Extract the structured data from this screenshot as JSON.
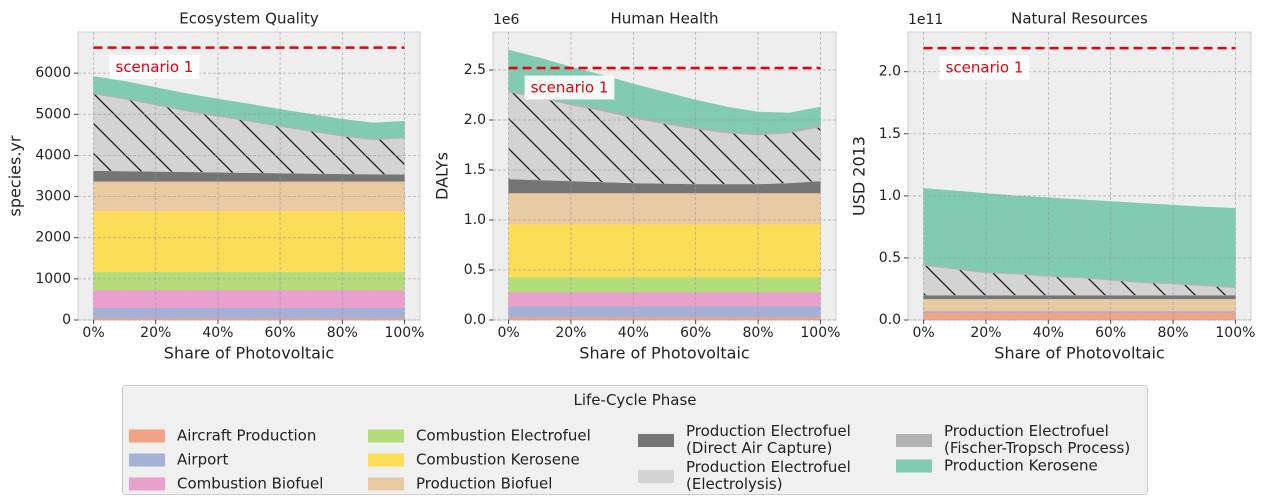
{
  "chart_data": [
    {
      "type": "stacked_area",
      "title": "Ecosystem Quality",
      "xlabel": "Share of Photovoltaic",
      "ylabel": "species.yr",
      "x": [
        0,
        10,
        20,
        30,
        40,
        50,
        60,
        70,
        80,
        90,
        100
      ],
      "xlim": [
        -5,
        105
      ],
      "xticks": [
        {
          "value": 0,
          "label": "0%"
        },
        {
          "value": 20,
          "label": "20%"
        },
        {
          "value": 40,
          "label": "40%"
        },
        {
          "value": 60,
          "label": "60%"
        },
        {
          "value": 80,
          "label": "80%"
        },
        {
          "value": 100,
          "label": "100%"
        }
      ],
      "ylim": [
        0,
        7000
      ],
      "yticks": [
        0,
        1000,
        2000,
        3000,
        4000,
        5000,
        6000
      ],
      "grid": true,
      "reference_line": {
        "value": 6620,
        "label": "scenario 1",
        "color": "#e8000b",
        "xmin": 0,
        "xmax": 100
      },
      "series": [
        {
          "name": "Aircraft Production",
          "color": "#f3a385",
          "values": [
            50,
            50,
            50,
            50,
            50,
            50,
            50,
            50,
            50,
            50,
            50
          ]
        },
        {
          "name": "Airport",
          "color": "#a4b0d6",
          "values": [
            250,
            250,
            250,
            250,
            250,
            250,
            250,
            250,
            250,
            250,
            250
          ]
        },
        {
          "name": "Combustion Biofuel",
          "color": "#e8a1cd",
          "values": [
            430,
            430,
            430,
            430,
            430,
            430,
            430,
            430,
            430,
            430,
            430
          ]
        },
        {
          "name": "Combustion Electrofuel",
          "color": "#b5dc7b",
          "values": [
            440,
            440,
            440,
            440,
            440,
            440,
            440,
            440,
            440,
            440,
            440
          ]
        },
        {
          "name": "Combustion Kerosene",
          "color": "#fbdd58",
          "values": [
            1480,
            1480,
            1480,
            1480,
            1480,
            1480,
            1480,
            1480,
            1480,
            1480,
            1480
          ]
        },
        {
          "name": "Production Biofuel",
          "color": "#e8cba3",
          "values": [
            720,
            720,
            720,
            720,
            720,
            720,
            720,
            720,
            720,
            720,
            720
          ]
        },
        {
          "name": "Production Electrofuel (Direct Air Capture)",
          "color": "#757575",
          "values": [
            260,
            250,
            240,
            230,
            220,
            210,
            200,
            190,
            180,
            175,
            170
          ]
        },
        {
          "name": "Production Electrofuel (Electrolysis)",
          "color": "#d3d3d3",
          "hatch": true,
          "values": [
            1860,
            1752,
            1614,
            1476,
            1358,
            1250,
            1132,
            1024,
            916,
            833,
            880
          ]
        },
        {
          "name": "Production Electrofuel (Fischer-Tropsch Process)",
          "color": "#b3b3b3",
          "values": [
            30,
            30,
            30,
            30,
            30,
            30,
            30,
            30,
            30,
            30,
            30
          ]
        },
        {
          "name": "Production Kerosene",
          "color": "#80cbb1",
          "values": [
            400,
            398,
            396,
            394,
            392,
            390,
            388,
            386,
            384,
            382,
            380
          ]
        }
      ]
    },
    {
      "type": "stacked_area",
      "title": "Human Health",
      "xlabel": "Share of Photovoltaic",
      "ylabel": "DALYs",
      "offset_label": "1e6",
      "x": [
        0,
        10,
        20,
        30,
        40,
        50,
        60,
        70,
        80,
        90,
        100
      ],
      "xlim": [
        -5,
        105
      ],
      "xticks": [
        {
          "value": 0,
          "label": "0%"
        },
        {
          "value": 20,
          "label": "20%"
        },
        {
          "value": 40,
          "label": "40%"
        },
        {
          "value": 60,
          "label": "60%"
        },
        {
          "value": 80,
          "label": "80%"
        },
        {
          "value": 100,
          "label": "100%"
        }
      ],
      "ylim": [
        0,
        2.88
      ],
      "yticks": [
        {
          "value": 0,
          "label": "0.0"
        },
        0.5,
        {
          "value": 1,
          "label": "1.0"
        },
        1.5,
        {
          "value": 2,
          "label": "2.0"
        },
        2.5
      ],
      "grid": true,
      "reference_line": {
        "value": 2.52,
        "label": "scenario 1",
        "color": "#e8000b",
        "xmin": 0,
        "xmax": 100
      },
      "series": [
        {
          "name": "Aircraft Production",
          "color": "#f3a385",
          "values": [
            0.03,
            0.03,
            0.03,
            0.03,
            0.03,
            0.03,
            0.03,
            0.03,
            0.03,
            0.03,
            0.03
          ]
        },
        {
          "name": "Airport",
          "color": "#a4b0d6",
          "values": [
            0.11,
            0.11,
            0.11,
            0.11,
            0.11,
            0.11,
            0.11,
            0.11,
            0.11,
            0.11,
            0.11
          ]
        },
        {
          "name": "Combustion Biofuel",
          "color": "#e8a1cd",
          "values": [
            0.14,
            0.14,
            0.14,
            0.14,
            0.14,
            0.14,
            0.14,
            0.14,
            0.14,
            0.14,
            0.14
          ]
        },
        {
          "name": "Combustion Electrofuel",
          "color": "#b5dc7b",
          "values": [
            0.15,
            0.15,
            0.15,
            0.15,
            0.15,
            0.15,
            0.15,
            0.15,
            0.15,
            0.15,
            0.15
          ]
        },
        {
          "name": "Combustion Kerosene",
          "color": "#fbdd58",
          "values": [
            0.53,
            0.53,
            0.53,
            0.53,
            0.53,
            0.53,
            0.53,
            0.53,
            0.53,
            0.53,
            0.53
          ]
        },
        {
          "name": "Production Biofuel",
          "color": "#e8cba3",
          "values": [
            0.31,
            0.31,
            0.31,
            0.31,
            0.31,
            0.31,
            0.31,
            0.31,
            0.31,
            0.31,
            0.31
          ]
        },
        {
          "name": "Production Electrofuel (Direct Air Capture)",
          "color": "#757575",
          "values": [
            0.14,
            0.13,
            0.12,
            0.11,
            0.1,
            0.095,
            0.09,
            0.09,
            0.09,
            0.1,
            0.12
          ]
        },
        {
          "name": "Production Electrofuel (Electrolysis)",
          "color": "#d3d3d3",
          "hatch": true,
          "values": [
            0.87,
            0.82,
            0.76,
            0.71,
            0.65,
            0.595,
            0.55,
            0.51,
            0.49,
            0.5,
            0.54
          ]
        },
        {
          "name": "Production Electrofuel (Fischer-Tropsch Process)",
          "color": "#b3b3b3",
          "values": [
            0.02,
            0.02,
            0.02,
            0.02,
            0.02,
            0.02,
            0.02,
            0.02,
            0.02,
            0.02,
            0.02
          ]
        },
        {
          "name": "Production Kerosene",
          "color": "#80cbb1",
          "values": [
            0.4,
            0.38,
            0.36,
            0.34,
            0.32,
            0.3,
            0.27,
            0.24,
            0.21,
            0.18,
            0.18
          ]
        }
      ]
    },
    {
      "type": "stacked_area",
      "title": "Natural Resources",
      "xlabel": "Share of Photovoltaic",
      "ylabel": "USD 2013",
      "offset_label": "1e11",
      "x": [
        0,
        10,
        20,
        30,
        40,
        50,
        60,
        70,
        80,
        90,
        100
      ],
      "xlim": [
        -5,
        105
      ],
      "xticks": [
        {
          "value": 0,
          "label": "0%"
        },
        {
          "value": 20,
          "label": "20%"
        },
        {
          "value": 40,
          "label": "40%"
        },
        {
          "value": 60,
          "label": "60%"
        },
        {
          "value": 80,
          "label": "80%"
        },
        {
          "value": 100,
          "label": "100%"
        }
      ],
      "ylim": [
        0,
        2.32
      ],
      "yticks": [
        {
          "value": 0,
          "label": "0.0"
        },
        0.5,
        {
          "value": 1,
          "label": "1.0"
        },
        1.5,
        {
          "value": 2,
          "label": "2.0"
        }
      ],
      "grid": true,
      "reference_line": {
        "value": 2.19,
        "label": "scenario 1",
        "color": "#e8000b",
        "xmin": 0,
        "xmax": 100
      },
      "series": [
        {
          "name": "Aircraft Production",
          "color": "#f3a385",
          "values": [
            0.06,
            0.06,
            0.06,
            0.06,
            0.06,
            0.06,
            0.06,
            0.06,
            0.06,
            0.06,
            0.06
          ]
        },
        {
          "name": "Airport",
          "color": "#a4b0d6",
          "values": [
            0.01,
            0.01,
            0.01,
            0.01,
            0.01,
            0.01,
            0.01,
            0.01,
            0.01,
            0.01,
            0.01
          ]
        },
        {
          "name": "Combustion Biofuel",
          "color": "#e8a1cd",
          "values": [
            0.005,
            0.005,
            0.005,
            0.005,
            0.005,
            0.005,
            0.005,
            0.005,
            0.005,
            0.005,
            0.005
          ]
        },
        {
          "name": "Combustion Electrofuel",
          "color": "#b5dc7b",
          "values": [
            0,
            0,
            0,
            0,
            0,
            0,
            0,
            0,
            0,
            0,
            0
          ]
        },
        {
          "name": "Combustion Kerosene",
          "color": "#fbdd58",
          "values": [
            0,
            0,
            0,
            0,
            0,
            0,
            0,
            0,
            0,
            0,
            0
          ]
        },
        {
          "name": "Production Biofuel",
          "color": "#e8cba3",
          "values": [
            0.095,
            0.095,
            0.095,
            0.095,
            0.095,
            0.095,
            0.095,
            0.095,
            0.095,
            0.095,
            0.095
          ]
        },
        {
          "name": "Production Electrofuel (Direct Air Capture)",
          "color": "#757575",
          "values": [
            0.03,
            0.03,
            0.03,
            0.03,
            0.03,
            0.03,
            0.03,
            0.03,
            0.03,
            0.03,
            0.03
          ]
        },
        {
          "name": "Production Electrofuel (Electrolysis)",
          "color": "#d3d3d3",
          "hatch": true,
          "values": [
            0.24,
            0.21,
            0.18,
            0.17,
            0.15,
            0.14,
            0.12,
            0.1,
            0.09,
            0.075,
            0.06
          ]
        },
        {
          "name": "Production Electrofuel (Fischer-Tropsch Process)",
          "color": "#b3b3b3",
          "values": [
            0.01,
            0.01,
            0.01,
            0.01,
            0.01,
            0.01,
            0.01,
            0.01,
            0.01,
            0.01,
            0.01
          ]
        },
        {
          "name": "Production Kerosene",
          "color": "#80cbb1",
          "values": [
            0.61,
            0.62,
            0.63,
            0.62,
            0.625,
            0.62,
            0.625,
            0.63,
            0.625,
            0.625,
            0.63
          ]
        }
      ]
    }
  ],
  "legend": {
    "title": "Life-Cycle Phase",
    "position": "lower center"
  }
}
